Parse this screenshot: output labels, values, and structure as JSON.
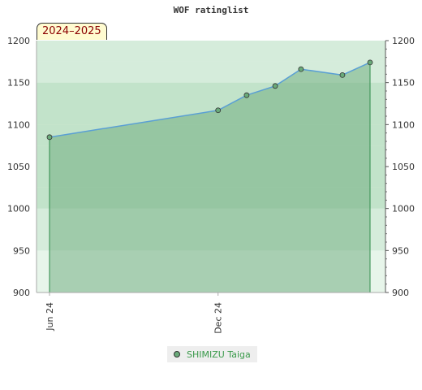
{
  "chart_data": {
    "type": "area",
    "title": "WOF ratinglist",
    "period_label": "2024–2025",
    "ylim": [
      900,
      1200
    ],
    "y_ticks": [
      900,
      950,
      1000,
      1050,
      1100,
      1150,
      1200
    ],
    "x_range": [
      "2024-06-01",
      "2025-06-15"
    ],
    "x_ticks": [
      {
        "date": "2024-06-01",
        "label": "Jun 24"
      },
      {
        "date": "2024-12-01",
        "label": "Dec 24"
      }
    ],
    "series": [
      {
        "name": "SHIMIZU Taiga",
        "points": [
          {
            "x": "2024-06-01",
            "y": 1085
          },
          {
            "x": "2024-12-01",
            "y": 1117
          },
          {
            "x": "2025-01-01",
            "y": 1135
          },
          {
            "x": "2025-02-01",
            "y": 1146
          },
          {
            "x": "2025-03-01",
            "y": 1166
          },
          {
            "x": "2025-04-15",
            "y": 1159
          },
          {
            "x": "2025-05-15",
            "y": 1174
          }
        ]
      }
    ],
    "legend_position": "bottom-center",
    "grid": true
  },
  "colors": {
    "line": "#5a9fd4",
    "area_fill": "#6aaa7a",
    "marker_fill": "#6aaa7a",
    "band_tones": [
      "#4caf65",
      "#8fcc9e",
      "#b2ddbd",
      "#d3ecd9"
    ]
  }
}
